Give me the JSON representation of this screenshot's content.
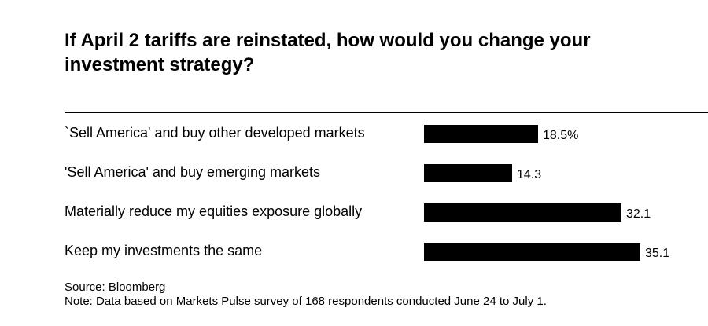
{
  "title": "If April 2 tariffs are reinstated, how would you change your investment strategy?",
  "chart_data": {
    "type": "bar",
    "orientation": "horizontal",
    "categories": [
      "`Sell America' and buy other developed markets",
      "'Sell America' and buy emerging markets",
      "Materially reduce my equities exposure globally",
      "Keep my investments the same"
    ],
    "values": [
      18.5,
      14.3,
      32.1,
      35.1
    ],
    "value_labels": [
      "18.5%",
      "14.3",
      "32.1",
      "35.1"
    ],
    "bar_color": "#000000",
    "xlim": [
      0,
      35.1
    ]
  },
  "footer": {
    "source": "Source: Bloomberg",
    "note": "Note: Data based on Markets Pulse survey of 168 respondents conducted June 24 to July 1."
  }
}
